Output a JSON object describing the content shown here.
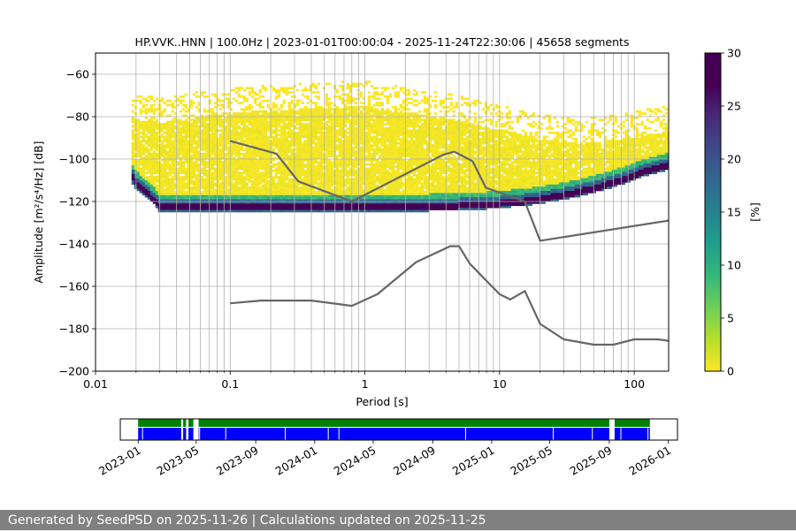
{
  "title": "HP.VVK..HNN | 100.0Hz | 2023-01-01T00:00:04 - 2025-11-24T22:30:06 | 45658 segments",
  "footer": "Generated by SeedPSD on 2025-11-26 | Calculations updated on 2025-11-25",
  "chart_data": [
    {
      "type": "heatmap",
      "title": "HP.VVK..HNN | 100.0Hz | 2023-01-01T00:00:04 - 2025-11-24T22:30:06 | 45658 segments",
      "xlabel": "Period [s]",
      "ylabel": "Amplitude [m²/s⁴/Hz] [dB]",
      "x_scale": "log",
      "xlim": [
        0.01,
        180
      ],
      "ylim": [
        -200,
        -50
      ],
      "x_ticks": [
        0.01,
        0.1,
        1,
        10,
        100
      ],
      "x_tick_labels": [
        "0.01",
        "0.1",
        "1",
        "10",
        "100"
      ],
      "y_ticks": [
        -200,
        -180,
        -160,
        -140,
        -120,
        -100,
        -80,
        -60
      ],
      "y_tick_labels": [
        "−200",
        "−180",
        "−160",
        "−140",
        "−120",
        "−100",
        "−80",
        "−60"
      ],
      "grid": true,
      "colorbar": {
        "label": "[%]",
        "range": [
          0,
          30
        ],
        "ticks": [
          0,
          5,
          10,
          15,
          20,
          25,
          30
        ],
        "tick_labels": [
          "0",
          "5",
          "10",
          "15",
          "20",
          "25",
          "30"
        ],
        "colormap": "viridis_r"
      },
      "density_mode_curve": {
        "period": [
          0.019,
          0.02,
          0.022,
          0.025,
          0.028,
          0.03,
          0.05,
          0.1,
          0.3,
          1,
          3,
          5,
          8,
          10,
          15,
          20,
          30,
          50,
          80,
          120,
          180
        ],
        "db": [
          -109,
          -111,
          -114,
          -117,
          -120,
          -123,
          -123,
          -123,
          -123,
          -123,
          -122.5,
          -122,
          -121.5,
          -121,
          -120,
          -119,
          -117,
          -114,
          -110,
          -106,
          -103
        ]
      },
      "density_band_half_width_db": {
        "period": [
          0.02,
          0.03,
          0.1,
          1,
          5,
          10,
          20,
          50,
          100,
          180
        ],
        "top_offset": [
          30,
          40,
          45,
          48,
          40,
          35,
          28,
          22,
          18,
          16
        ],
        "bottom_offset": [
          3,
          2,
          2,
          2,
          2,
          2,
          2,
          2,
          2,
          2
        ]
      },
      "series": [
        {
          "name": "",
          "color": "#666666",
          "points": [
            [
              0.1,
              -91.5
            ],
            [
              0.22,
              -97.4
            ],
            [
              0.32,
              -110.5
            ],
            [
              0.8,
              -120
            ],
            [
              3.8,
              -98
            ],
            [
              4.6,
              -96.5
            ],
            [
              6.3,
              -101
            ],
            [
              7.9,
              -113.5
            ],
            [
              15.4,
              -120
            ],
            [
              20,
              -138.5
            ],
            [
              180,
              -129
            ]
          ]
        },
        {
          "name": "",
          "color": "#666666",
          "points": [
            [
              0.1,
              -168
            ],
            [
              0.17,
              -166.7
            ],
            [
              0.4,
              -166.7
            ],
            [
              0.8,
              -169.2
            ],
            [
              1.24,
              -163.7
            ],
            [
              2.4,
              -148.6
            ],
            [
              4.3,
              -141.1
            ],
            [
              5.0,
              -141.1
            ],
            [
              6.0,
              -149.3
            ],
            [
              10,
              -163.7
            ],
            [
              12,
              -166.2
            ],
            [
              15.4,
              -162.2
            ],
            [
              20,
              -177.7
            ],
            [
              30,
              -185
            ],
            [
              50,
              -187.5
            ],
            [
              70,
              -187.5
            ],
            [
              100,
              -185
            ],
            [
              150,
              -185
            ],
            [
              180,
              -185.7
            ]
          ]
        }
      ],
      "gap_gridlines_period": [
        0.02,
        0.03,
        0.04,
        0.05,
        0.06,
        0.07,
        0.08,
        0.09,
        0.2,
        0.3,
        0.4,
        0.5,
        0.6,
        0.7,
        0.8,
        0.9,
        2,
        3,
        4,
        5,
        6,
        7,
        8,
        9,
        20,
        30,
        40,
        50,
        60,
        70,
        80,
        90
      ]
    },
    {
      "type": "timeline",
      "x_tick_labels": [
        "2023-01",
        "2023-05",
        "2023-09",
        "2024-01",
        "2024-05",
        "2024-09",
        "2025-01",
        "2025-05",
        "2025-09",
        "2026-01"
      ],
      "x_tick_dates": [
        "2023-01-01",
        "2023-05-01",
        "2023-09-01",
        "2024-01-01",
        "2024-05-01",
        "2024-09-01",
        "2025-01-01",
        "2025-05-01",
        "2025-09-01",
        "2026-01-01"
      ],
      "xlim": [
        "2022-11-25",
        "2026-01-20"
      ],
      "available_colors": {
        "top": "#008000",
        "bottom": "#0000ff"
      },
      "coverage_intervals": [
        [
          "2023-01-01",
          "2023-03-31"
        ],
        [
          "2023-04-04",
          "2023-04-10"
        ],
        [
          "2023-04-15",
          "2023-04-25"
        ],
        [
          "2023-05-06",
          "2025-09-01"
        ],
        [
          "2025-09-12",
          "2025-11-24"
        ]
      ],
      "bottom_gaps": [
        [
          "2023-04-28",
          "2023-05-03"
        ]
      ],
      "markers": [
        "2023-01-10",
        "2023-05-08",
        "2023-07-01",
        "2023-11-01",
        "2024-01-29",
        "2024-02-20",
        "2024-11-08",
        "2025-05-08",
        "2025-07-28",
        "2025-09-25",
        "2025-11-20"
      ]
    }
  ]
}
